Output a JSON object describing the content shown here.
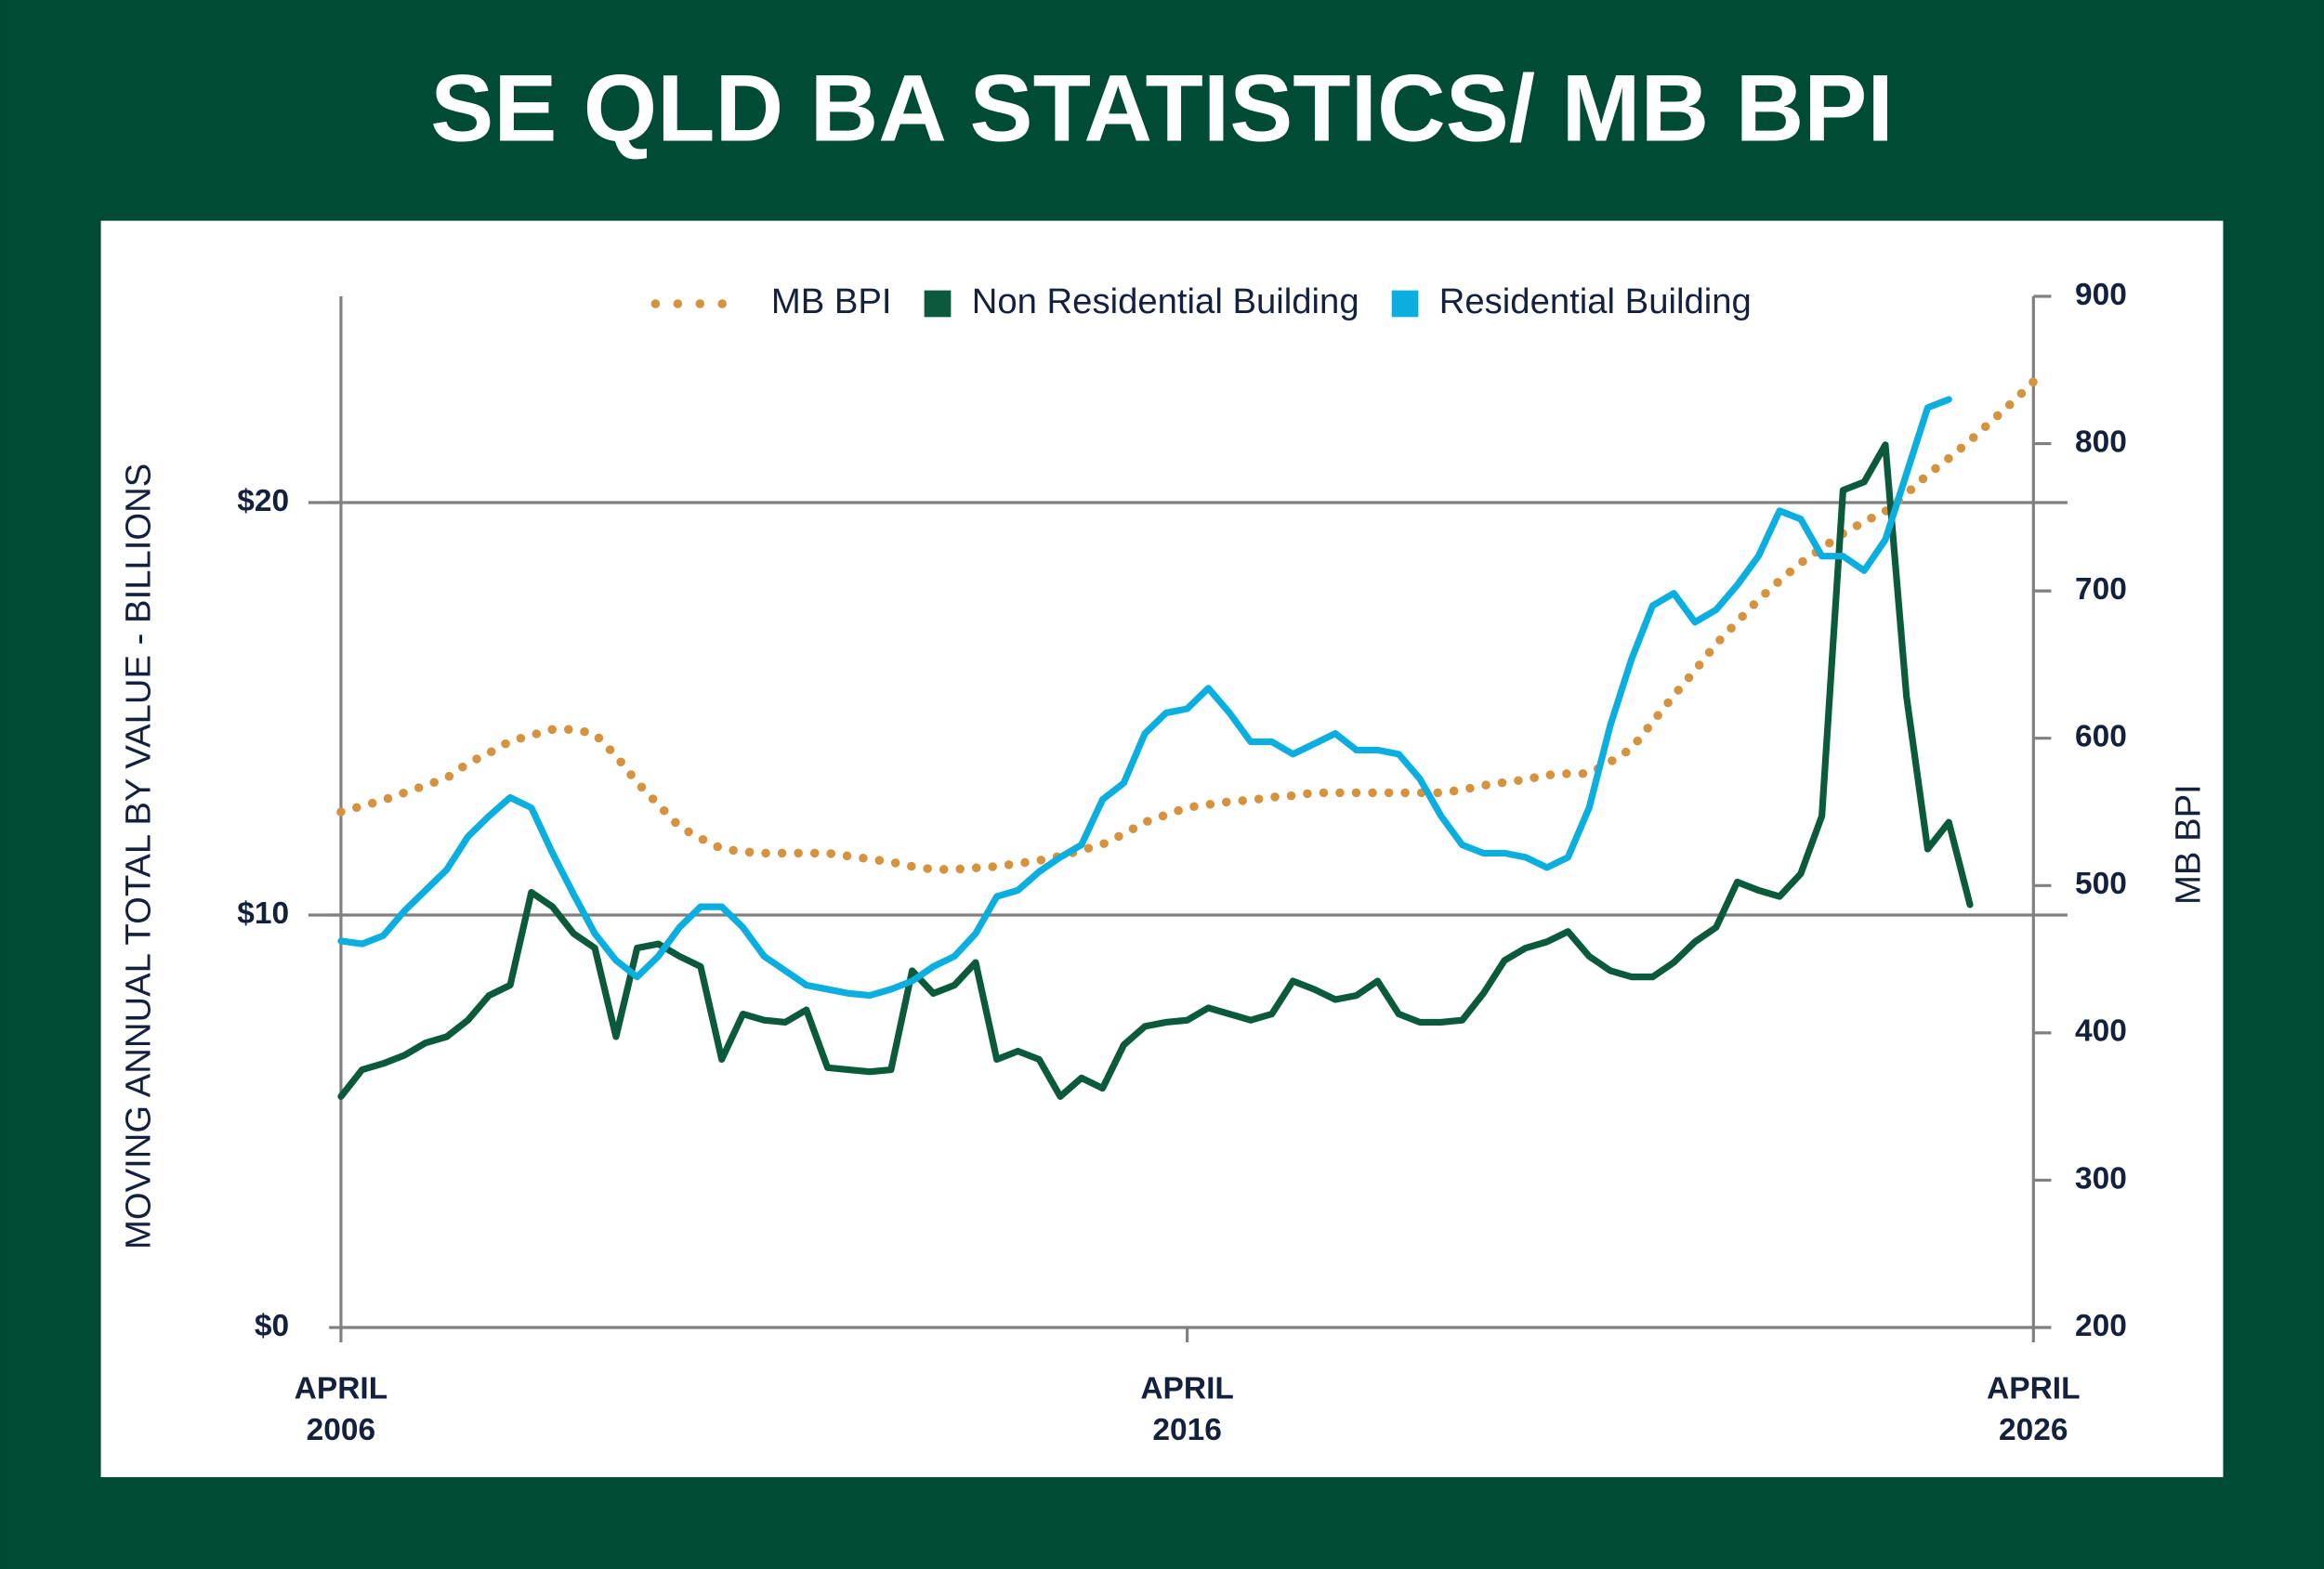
{
  "chart_data": {
    "type": "line",
    "title": "SE QLD BA STATISTICS/ MB BPI",
    "y_label": "MOVING ANNUAL TOTAL BY VALUE - BILLIONS",
    "y2_label": "MB BPI",
    "legend": "top",
    "grid": true,
    "x": [
      "2006-04",
      "2006-07",
      "2006-10",
      "2007-01",
      "2007-04",
      "2007-07",
      "2007-10",
      "2008-01",
      "2008-04",
      "2008-07",
      "2008-10",
      "2009-01",
      "2009-04",
      "2009-07",
      "2009-10",
      "2010-01",
      "2010-04",
      "2010-07",
      "2010-10",
      "2011-01",
      "2011-04",
      "2011-07",
      "2011-10",
      "2012-01",
      "2012-04",
      "2012-07",
      "2012-10",
      "2013-01",
      "2013-04",
      "2013-07",
      "2013-10",
      "2014-01",
      "2014-04",
      "2014-07",
      "2014-10",
      "2015-01",
      "2015-04",
      "2015-07",
      "2015-10",
      "2016-01",
      "2016-04",
      "2016-07",
      "2016-10",
      "2017-01",
      "2017-04",
      "2017-07",
      "2017-10",
      "2018-01",
      "2018-04",
      "2018-07",
      "2018-10",
      "2019-01",
      "2019-04",
      "2019-07",
      "2019-10",
      "2020-01",
      "2020-04",
      "2020-07",
      "2020-10",
      "2021-01",
      "2021-04",
      "2021-07",
      "2021-10",
      "2022-01",
      "2022-04",
      "2022-07",
      "2022-10",
      "2023-01",
      "2023-04",
      "2023-07",
      "2023-10",
      "2024-01",
      "2024-04",
      "2024-07",
      "2024-10",
      "2025-01",
      "2025-04",
      "2025-07",
      "2025-10",
      "2026-01",
      "2026-04"
    ],
    "xlim": [
      "2006-04",
      "2026-04"
    ],
    "xticks": [
      {
        "value": "2006-04",
        "label": "APRIL 2006"
      },
      {
        "value": "2016-04",
        "label": "APRIL 2016"
      },
      {
        "value": "2026-04",
        "label": "APRIL 2026"
      }
    ],
    "ylim": [
      0,
      25
    ],
    "yticks": [
      {
        "value": 0,
        "label": "$0"
      },
      {
        "value": 10,
        "label": "$10"
      },
      {
        "value": 20,
        "label": "$20"
      }
    ],
    "y2lim": [
      200,
      900
    ],
    "y2ticks": [
      200,
      300,
      400,
      500,
      600,
      700,
      800,
      900
    ],
    "series": [
      {
        "name": "MB BPI",
        "color": "#d6933f",
        "axis": "y2",
        "line_style": "dotted",
        "values": [
          550,
          554,
          558,
          563,
          568,
          573,
          583,
          590,
          598,
          602,
          606,
          606,
          603,
          588,
          570,
          555,
          540,
          532,
          525,
          523,
          522,
          522,
          522,
          522,
          520,
          518,
          516,
          513,
          511,
          511,
          512,
          513,
          515,
          517,
          520,
          524,
          528,
          535,
          543,
          548,
          553,
          555,
          557,
          558,
          560,
          561,
          563,
          563,
          563,
          563,
          563,
          563,
          563,
          565,
          568,
          570,
          572,
          575,
          576,
          576,
          584,
          593,
          611,
          629,
          646,
          664,
          679,
          694,
          707,
          719,
          729,
          739,
          747,
          754,
          766,
          779,
          790,
          802,
          815,
          828,
          842
        ]
      },
      {
        "name": "Non Residential Building",
        "color": "#0b5a3b",
        "axis": "y",
        "line_style": "solid",
        "values": [
          5.6,
          6.25,
          6.4,
          6.6,
          6.9,
          7.05,
          7.45,
          8.05,
          8.3,
          10.55,
          10.2,
          9.55,
          9.2,
          7.05,
          9.2,
          9.3,
          9.0,
          8.75,
          6.5,
          7.6,
          7.45,
          7.4,
          7.7,
          6.3,
          6.25,
          6.2,
          6.25,
          8.65,
          8.1,
          8.3,
          8.85,
          6.5,
          6.7,
          6.5,
          5.6,
          6.05,
          5.8,
          6.85,
          7.3,
          7.4,
          7.45,
          7.75,
          7.6,
          7.45,
          7.6,
          8.4,
          8.2,
          7.95,
          8.05,
          8.4,
          7.6,
          7.4,
          7.4,
          7.45,
          8.1,
          8.9,
          9.2,
          9.35,
          9.6,
          9.0,
          8.65,
          8.5,
          8.5,
          8.85,
          9.35,
          9.7,
          10.8,
          10.6,
          10.45,
          11.0,
          12.4,
          20.3,
          20.5,
          21.4,
          15.3,
          11.6,
          12.25,
          10.25,
          null,
          null,
          null
        ]
      },
      {
        "name": "Residential Building",
        "color": "#0aaedf",
        "axis": "y",
        "line_style": "solid",
        "values": [
          9.37,
          9.3,
          9.5,
          10.1,
          10.6,
          11.1,
          11.9,
          12.4,
          12.85,
          12.6,
          11.5,
          10.5,
          9.55,
          8.9,
          8.5,
          9.0,
          9.7,
          10.2,
          10.2,
          9.7,
          9.0,
          8.65,
          8.3,
          8.2,
          8.1,
          8.05,
          8.2,
          8.4,
          8.75,
          9.0,
          9.55,
          10.45,
          10.6,
          11.05,
          11.4,
          11.7,
          12.8,
          13.2,
          14.4,
          14.9,
          15.0,
          15.5,
          14.9,
          14.2,
          14.2,
          13.9,
          14.15,
          14.4,
          14.0,
          14.0,
          13.9,
          13.3,
          12.4,
          11.7,
          11.5,
          11.5,
          11.4,
          11.15,
          11.4,
          12.6,
          14.6,
          16.2,
          17.5,
          17.8,
          17.1,
          17.4,
          18.0,
          18.7,
          19.8,
          19.6,
          18.7,
          18.7,
          18.35,
          19.1,
          20.7,
          22.3,
          22.5,
          null,
          null,
          null,
          null
        ]
      }
    ]
  }
}
